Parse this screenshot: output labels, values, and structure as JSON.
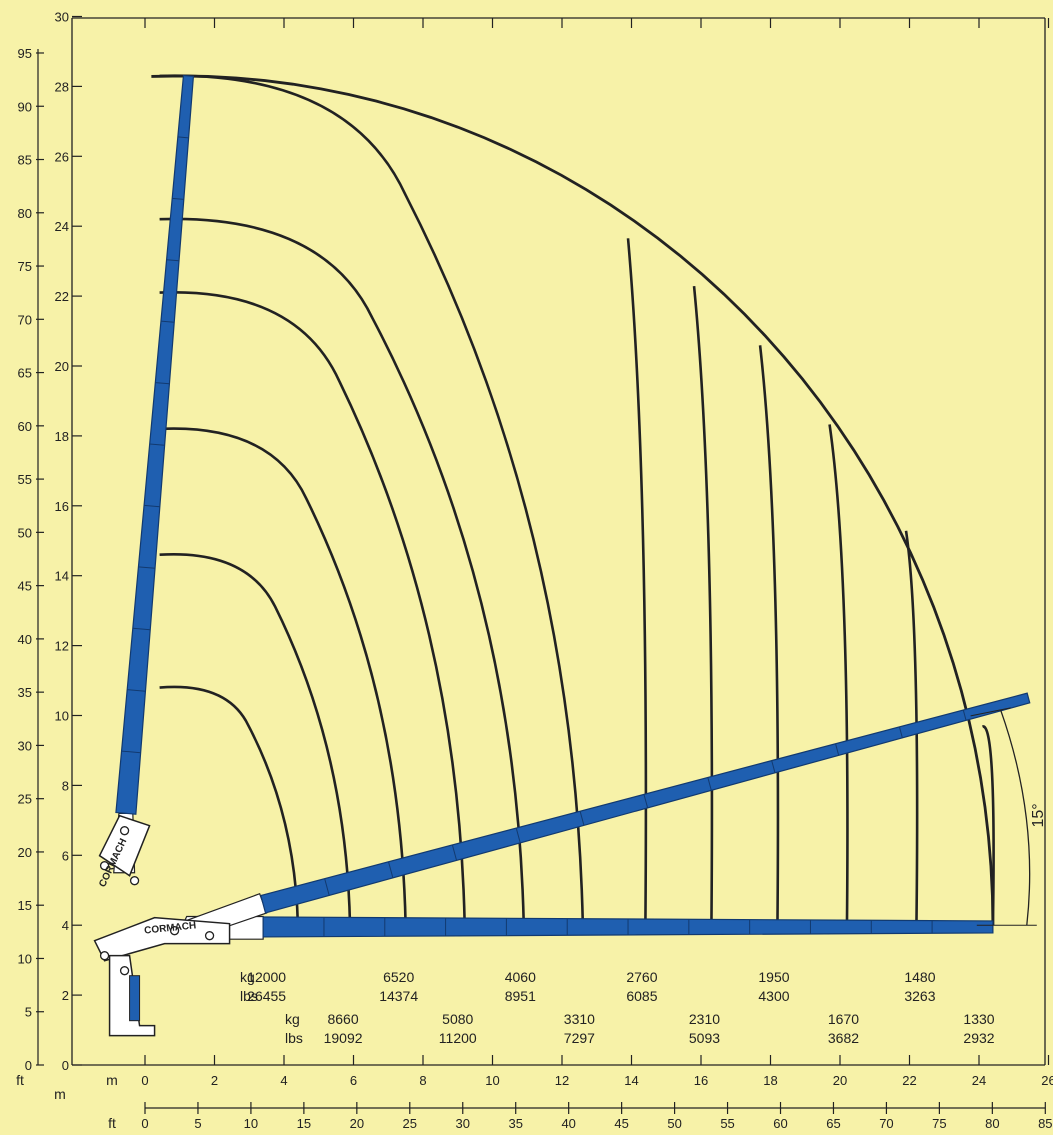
{
  "chart_data": {
    "type": "line",
    "title": "",
    "axes": {
      "left_ft": {
        "ticks": [
          0,
          5,
          10,
          15,
          20,
          25,
          30,
          35,
          40,
          45,
          50,
          55,
          60,
          65,
          70,
          75,
          80,
          85,
          90,
          95
        ]
      },
      "left_m": {
        "ticks": [
          0,
          2,
          4,
          6,
          8,
          10,
          12,
          14,
          16,
          18,
          20,
          22,
          24,
          26,
          28,
          30
        ]
      },
      "bottom_m": {
        "ticks": [
          0,
          2,
          4,
          6,
          8,
          10,
          12,
          14,
          16,
          18,
          20,
          22,
          24,
          26
        ],
        "range": [
          0,
          26
        ]
      },
      "bottom_ft": {
        "ticks": [
          0,
          5,
          10,
          15,
          20,
          25,
          30,
          35,
          40,
          45,
          50,
          55,
          60,
          65,
          70,
          75,
          80,
          85
        ]
      },
      "y_range_m": [
        0,
        30
      ],
      "unit_labels": {
        "m": "m",
        "ft": "ft"
      }
    },
    "grid": false,
    "boom_angle_label": "15°",
    "boom_tip_max_height_m": 28.3,
    "max_reach_m": 24.4,
    "load_tables": {
      "upper": {
        "kg_label": "kg",
        "lbs_label": "lbs",
        "entries": [
          {
            "reach_m": 3.5,
            "kg": "12000",
            "lbs": "26455"
          },
          {
            "reach_m": 7.3,
            "kg": "6520",
            "lbs": "14374"
          },
          {
            "reach_m": 10.8,
            "kg": "4060",
            "lbs": "8951"
          },
          {
            "reach_m": 14.3,
            "kg": "2760",
            "lbs": "6085"
          },
          {
            "reach_m": 18.1,
            "kg": "1950",
            "lbs": "4300"
          },
          {
            "reach_m": 22.3,
            "kg": "1480",
            "lbs": "3263"
          }
        ]
      },
      "lower": {
        "kg_label": "kg",
        "lbs_label": "lbs",
        "entries": [
          {
            "reach_m": 5.7,
            "kg": "8660",
            "lbs": "19092"
          },
          {
            "reach_m": 9.0,
            "kg": "5080",
            "lbs": "11200"
          },
          {
            "reach_m": 12.5,
            "kg": "3310",
            "lbs": "7297"
          },
          {
            "reach_m": 16.1,
            "kg": "2310",
            "lbs": "5093"
          },
          {
            "reach_m": 20.1,
            "kg": "1670",
            "lbs": "3682"
          },
          {
            "reach_m": 24.0,
            "kg": "1330",
            "lbs": "2932"
          }
        ]
      }
    },
    "envelope_curves": [
      {
        "top_height_m": 10.8,
        "ground_reach_m": 4.4
      },
      {
        "top_height_m": 14.6,
        "ground_reach_m": 5.9
      },
      {
        "top_height_m": 18.2,
        "ground_reach_m": 7.5
      },
      {
        "top_height_m": 22.1,
        "ground_reach_m": 9.2
      },
      {
        "top_height_m": 24.2,
        "ground_reach_m": 10.9
      },
      {
        "top_height_m": 28.3,
        "ground_reach_m": 12.6
      },
      {
        "ground_reach_m": 14.4
      },
      {
        "ground_reach_m": 16.3
      },
      {
        "ground_reach_m": 18.2
      },
      {
        "ground_reach_m": 20.2
      },
      {
        "ground_reach_m": 22.2
      },
      {
        "ground_reach_m": 24.4
      }
    ],
    "brand_text": "CORMACH",
    "colors": {
      "background": "#f7f2a8",
      "boom": "#1f5fb0",
      "line": "#222222"
    }
  }
}
